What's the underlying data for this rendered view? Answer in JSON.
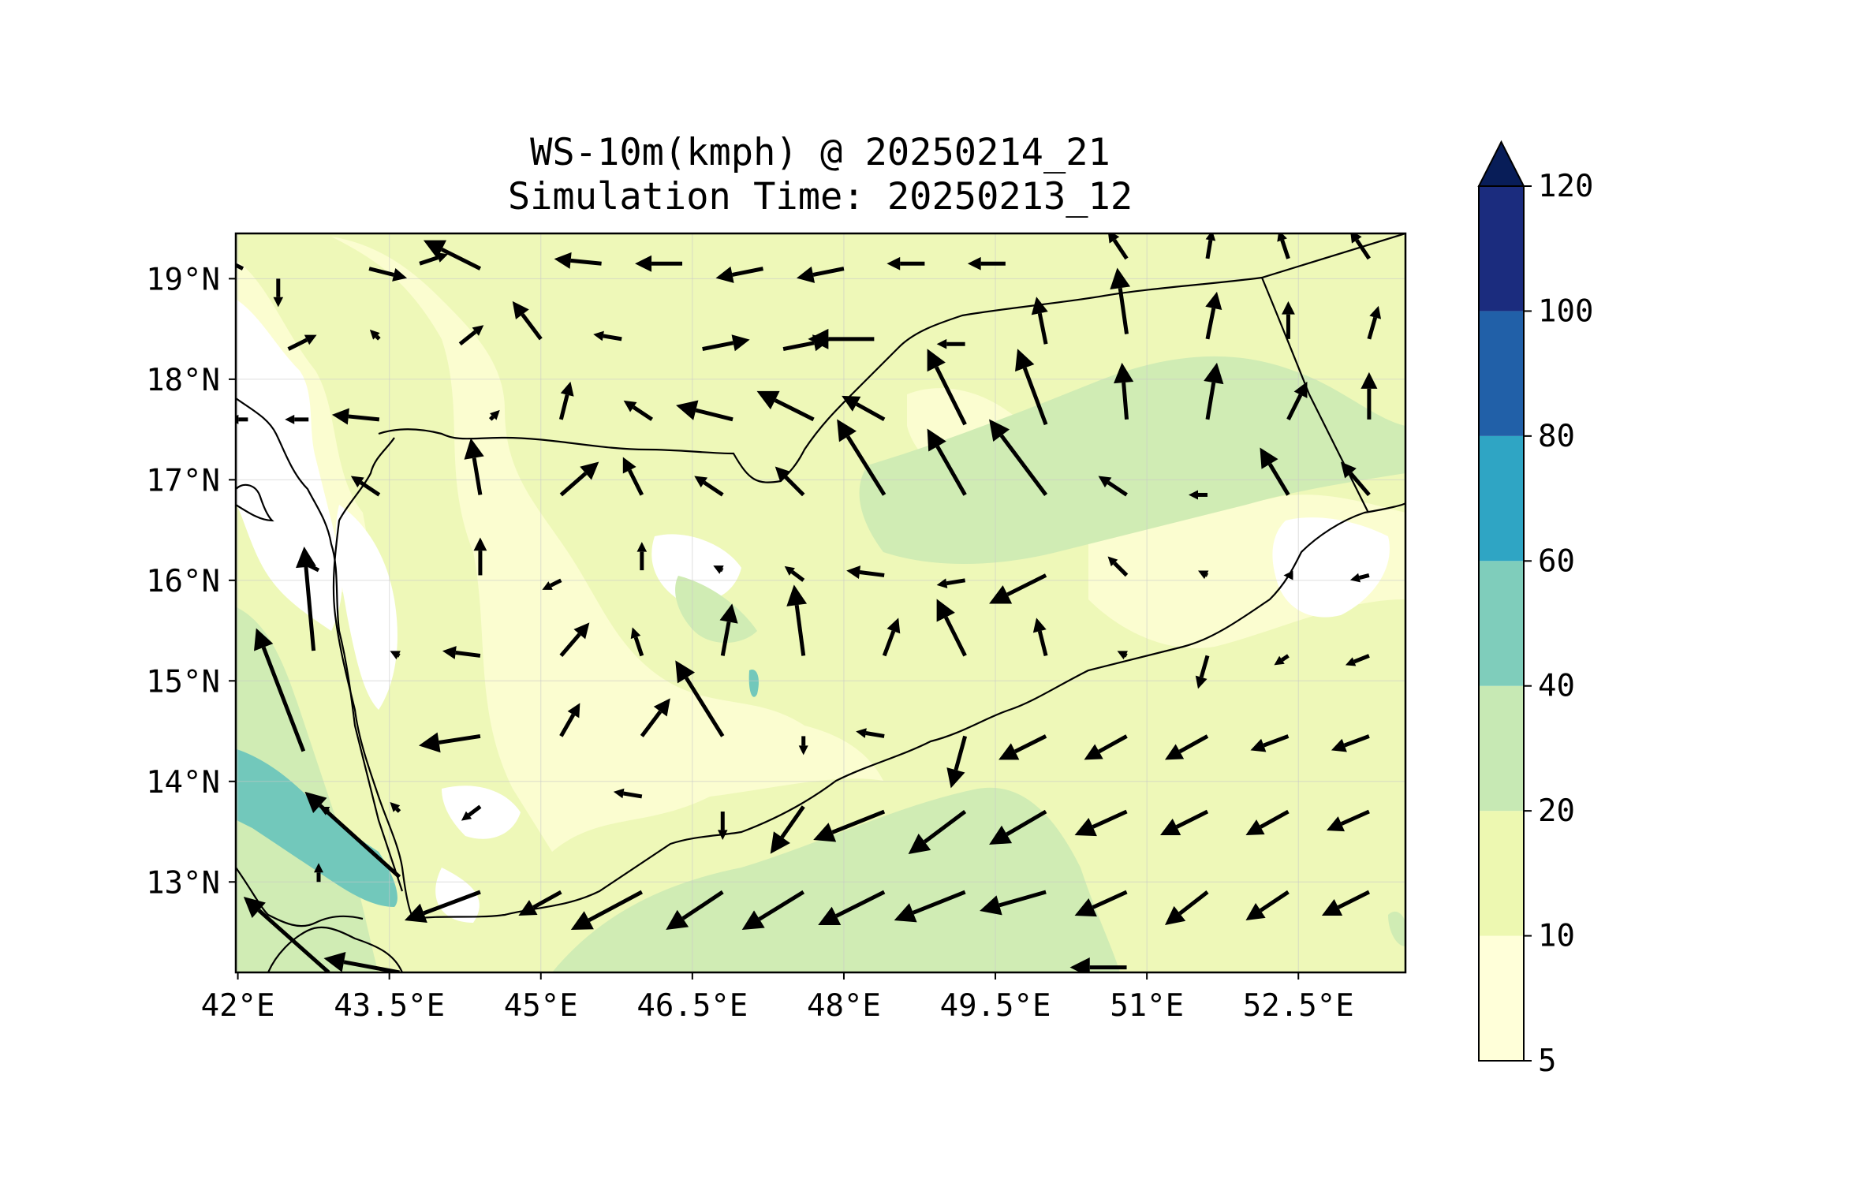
{
  "title": {
    "line1": "WS-10m(kmph) @ 20250214_21",
    "line2": "Simulation Time: 20250213_12"
  },
  "map": {
    "lon_range": [
      41.98,
      53.56
    ],
    "lat_range": [
      12.1,
      19.45
    ],
    "x_ticks": [
      {
        "value": 42,
        "label": "42°E"
      },
      {
        "value": 43.5,
        "label": "43.5°E"
      },
      {
        "value": 45,
        "label": "45°E"
      },
      {
        "value": 46.5,
        "label": "46.5°E"
      },
      {
        "value": 48,
        "label": "48°E"
      },
      {
        "value": 49.5,
        "label": "49.5°E"
      },
      {
        "value": 51,
        "label": "51°E"
      },
      {
        "value": 52.5,
        "label": "52.5°E"
      }
    ],
    "y_ticks": [
      {
        "value": 13,
        "label": "13°N"
      },
      {
        "value": 14,
        "label": "14°N"
      },
      {
        "value": 15,
        "label": "15°N"
      },
      {
        "value": 16,
        "label": "16°N"
      },
      {
        "value": 17,
        "label": "17°N"
      },
      {
        "value": 18,
        "label": "18°N"
      },
      {
        "value": 19,
        "label": "19°N"
      }
    ],
    "grid": true
  },
  "colorbar": {
    "levels": [
      {
        "value": 5,
        "label": "5",
        "color": "#ffffd9"
      },
      {
        "value": 10,
        "label": "10",
        "color": "#edf8b1"
      },
      {
        "value": 20,
        "label": "20",
        "color": "#c7e9b4"
      },
      {
        "value": 40,
        "label": "40",
        "color": "#7fcdbb"
      },
      {
        "value": 60,
        "label": "60",
        "color": "#2fa5c4"
      },
      {
        "value": 80,
        "label": "80",
        "color": "#2160a8"
      },
      {
        "value": 100,
        "label": "100",
        "color": "#1b2c7e"
      },
      {
        "value": 120,
        "label": "120",
        "color": "#081d58"
      }
    ],
    "extend": "max"
  },
  "colors": {
    "below_5": "#ffffff",
    "level_5_10": "#fbfdd0",
    "level_10_20": "#eef8b8",
    "level_20_40": "#d0ecb4",
    "level_40_60": "#72c8bb",
    "border": "#000000",
    "arrow": "#000000"
  },
  "wind_vectors": [
    {
      "lon": 42.05,
      "lat": 19.1,
      "u": -0.2,
      "v": 0.1
    },
    {
      "lon": 42.4,
      "lat": 19.0,
      "u": 0.0,
      "v": -0.3
    },
    {
      "lon": 43.3,
      "lat": 19.1,
      "u": 0.4,
      "v": -0.1
    },
    {
      "lon": 43.8,
      "lat": 19.15,
      "u": 0.3,
      "v": 0.1
    },
    {
      "lon": 44.4,
      "lat": 19.1,
      "u": -0.6,
      "v": 0.3
    },
    {
      "lon": 45.6,
      "lat": 19.15,
      "u": -0.5,
      "v": 0.05
    },
    {
      "lon": 46.4,
      "lat": 19.15,
      "u": -0.5,
      "v": 0.0
    },
    {
      "lon": 47.2,
      "lat": 19.1,
      "u": -0.5,
      "v": -0.1
    },
    {
      "lon": 48.0,
      "lat": 19.1,
      "u": -0.5,
      "v": -0.1
    },
    {
      "lon": 48.8,
      "lat": 19.15,
      "u": -0.4,
      "v": 0.0
    },
    {
      "lon": 49.6,
      "lat": 19.15,
      "u": -0.4,
      "v": 0.0
    },
    {
      "lon": 50.8,
      "lat": 19.2,
      "u": -0.2,
      "v": 0.3
    },
    {
      "lon": 51.6,
      "lat": 19.2,
      "u": 0.05,
      "v": 0.3
    },
    {
      "lon": 52.4,
      "lat": 19.2,
      "u": -0.1,
      "v": 0.3
    },
    {
      "lon": 53.2,
      "lat": 19.2,
      "u": -0.2,
      "v": 0.3
    },
    {
      "lon": 42.5,
      "lat": 18.3,
      "u": 0.3,
      "v": 0.15
    },
    {
      "lon": 43.4,
      "lat": 18.4,
      "u": -0.1,
      "v": 0.1
    },
    {
      "lon": 44.2,
      "lat": 18.35,
      "u": 0.25,
      "v": 0.2
    },
    {
      "lon": 45.0,
      "lat": 18.4,
      "u": -0.3,
      "v": 0.4
    },
    {
      "lon": 45.8,
      "lat": 18.4,
      "u": -0.3,
      "v": 0.05
    },
    {
      "lon": 46.6,
      "lat": 18.3,
      "u": 0.5,
      "v": 0.1
    },
    {
      "lon": 47.4,
      "lat": 18.3,
      "u": 0.5,
      "v": 0.1
    },
    {
      "lon": 48.3,
      "lat": 18.4,
      "u": -0.7,
      "v": 0.0
    },
    {
      "lon": 49.2,
      "lat": 18.35,
      "u": -0.3,
      "v": 0.0
    },
    {
      "lon": 50.0,
      "lat": 18.35,
      "u": -0.1,
      "v": 0.5
    },
    {
      "lon": 50.8,
      "lat": 18.45,
      "u": -0.1,
      "v": 0.7
    },
    {
      "lon": 51.6,
      "lat": 18.4,
      "u": 0.1,
      "v": 0.5
    },
    {
      "lon": 52.4,
      "lat": 18.4,
      "u": 0.0,
      "v": 0.4
    },
    {
      "lon": 53.2,
      "lat": 18.4,
      "u": 0.1,
      "v": 0.35
    },
    {
      "lon": 42.1,
      "lat": 17.6,
      "u": -0.2,
      "v": 0.0
    },
    {
      "lon": 42.7,
      "lat": 17.6,
      "u": -0.25,
      "v": 0.0
    },
    {
      "lon": 43.4,
      "lat": 17.6,
      "u": -0.5,
      "v": 0.05
    },
    {
      "lon": 44.5,
      "lat": 17.6,
      "u": 0.1,
      "v": 0.1
    },
    {
      "lon": 45.2,
      "lat": 17.6,
      "u": 0.1,
      "v": 0.4
    },
    {
      "lon": 46.1,
      "lat": 17.6,
      "u": -0.3,
      "v": 0.2
    },
    {
      "lon": 46.9,
      "lat": 17.6,
      "u": -0.6,
      "v": 0.15
    },
    {
      "lon": 47.7,
      "lat": 17.6,
      "u": -0.6,
      "v": 0.3
    },
    {
      "lon": 48.4,
      "lat": 17.6,
      "u": -0.45,
      "v": 0.25
    },
    {
      "lon": 49.2,
      "lat": 17.55,
      "u": -0.4,
      "v": 0.8
    },
    {
      "lon": 50.0,
      "lat": 17.55,
      "u": -0.3,
      "v": 0.8
    },
    {
      "lon": 50.8,
      "lat": 17.6,
      "u": -0.05,
      "v": 0.6
    },
    {
      "lon": 51.6,
      "lat": 17.6,
      "u": 0.1,
      "v": 0.6
    },
    {
      "lon": 52.4,
      "lat": 17.6,
      "u": 0.2,
      "v": 0.4
    },
    {
      "lon": 53.2,
      "lat": 17.6,
      "u": 0.0,
      "v": 0.5
    },
    {
      "lon": 43.4,
      "lat": 16.85,
      "u": -0.3,
      "v": 0.2
    },
    {
      "lon": 44.4,
      "lat": 16.85,
      "u": -0.1,
      "v": 0.6
    },
    {
      "lon": 45.2,
      "lat": 16.85,
      "u": 0.4,
      "v": 0.35
    },
    {
      "lon": 46.0,
      "lat": 16.85,
      "u": -0.2,
      "v": 0.4
    },
    {
      "lon": 46.8,
      "lat": 16.85,
      "u": -0.3,
      "v": 0.2
    },
    {
      "lon": 47.6,
      "lat": 16.85,
      "u": -0.3,
      "v": 0.3
    },
    {
      "lon": 48.4,
      "lat": 16.85,
      "u": -0.5,
      "v": 0.8
    },
    {
      "lon": 49.2,
      "lat": 16.85,
      "u": -0.4,
      "v": 0.7
    },
    {
      "lon": 50.0,
      "lat": 16.85,
      "u": -0.6,
      "v": 0.8
    },
    {
      "lon": 50.8,
      "lat": 16.85,
      "u": -0.3,
      "v": 0.2
    },
    {
      "lon": 51.6,
      "lat": 16.85,
      "u": -0.2,
      "v": 0.0
    },
    {
      "lon": 52.4,
      "lat": 16.85,
      "u": -0.3,
      "v": 0.5
    },
    {
      "lon": 53.2,
      "lat": 16.85,
      "u": -0.3,
      "v": 0.35
    },
    {
      "lon": 42.8,
      "lat": 16.1,
      "u": -0.2,
      "v": 0.1
    },
    {
      "lon": 44.4,
      "lat": 16.05,
      "u": 0.0,
      "v": 0.4
    },
    {
      "lon": 45.2,
      "lat": 16.0,
      "u": -0.2,
      "v": -0.1
    },
    {
      "lon": 46.0,
      "lat": 16.1,
      "u": 0.0,
      "v": 0.3
    },
    {
      "lon": 46.8,
      "lat": 16.1,
      "u": -0.1,
      "v": 0.05
    },
    {
      "lon": 47.6,
      "lat": 16.0,
      "u": -0.2,
      "v": 0.15
    },
    {
      "lon": 48.4,
      "lat": 16.05,
      "u": -0.4,
      "v": 0.05
    },
    {
      "lon": 49.2,
      "lat": 16.0,
      "u": -0.3,
      "v": -0.05
    },
    {
      "lon": 50.0,
      "lat": 16.05,
      "u": -0.6,
      "v": -0.3
    },
    {
      "lon": 50.8,
      "lat": 16.05,
      "u": -0.2,
      "v": 0.2
    },
    {
      "lon": 51.6,
      "lat": 16.05,
      "u": -0.1,
      "v": 0.05
    },
    {
      "lon": 52.4,
      "lat": 16.05,
      "u": -0.05,
      "v": 0.0
    },
    {
      "lon": 53.2,
      "lat": 16.05,
      "u": -0.2,
      "v": -0.05
    },
    {
      "lon": 42.75,
      "lat": 15.3,
      "u": -0.1,
      "v": 1.1
    },
    {
      "lon": 43.6,
      "lat": 15.25,
      "u": -0.1,
      "v": 0.05
    },
    {
      "lon": 44.4,
      "lat": 15.25,
      "u": -0.4,
      "v": 0.05
    },
    {
      "lon": 45.2,
      "lat": 15.25,
      "u": 0.3,
      "v": 0.35
    },
    {
      "lon": 46.0,
      "lat": 15.25,
      "u": -0.1,
      "v": 0.3
    },
    {
      "lon": 46.8,
      "lat": 15.25,
      "u": 0.1,
      "v": 0.55
    },
    {
      "lon": 47.6,
      "lat": 15.25,
      "u": -0.1,
      "v": 0.75
    },
    {
      "lon": 48.4,
      "lat": 15.25,
      "u": 0.15,
      "v": 0.4
    },
    {
      "lon": 49.2,
      "lat": 15.25,
      "u": -0.3,
      "v": 0.6
    },
    {
      "lon": 50.0,
      "lat": 15.25,
      "u": -0.1,
      "v": 0.4
    },
    {
      "lon": 50.8,
      "lat": 15.25,
      "u": -0.1,
      "v": 0.05
    },
    {
      "lon": 51.6,
      "lat": 15.25,
      "u": -0.1,
      "v": -0.35
    },
    {
      "lon": 52.4,
      "lat": 15.25,
      "u": -0.15,
      "v": -0.1
    },
    {
      "lon": 53.2,
      "lat": 15.25,
      "u": -0.25,
      "v": -0.1
    },
    {
      "lon": 42.65,
      "lat": 14.3,
      "u": -0.5,
      "v": 1.3
    },
    {
      "lon": 44.4,
      "lat": 14.45,
      "u": -0.65,
      "v": -0.1
    },
    {
      "lon": 45.2,
      "lat": 14.45,
      "u": 0.2,
      "v": 0.35
    },
    {
      "lon": 46.0,
      "lat": 14.45,
      "u": 0.3,
      "v": 0.4
    },
    {
      "lon": 46.8,
      "lat": 14.45,
      "u": -0.5,
      "v": 0.8
    },
    {
      "lon": 47.6,
      "lat": 14.45,
      "u": 0.0,
      "v": -0.2
    },
    {
      "lon": 48.4,
      "lat": 14.45,
      "u": -0.3,
      "v": 0.05
    },
    {
      "lon": 49.2,
      "lat": 14.45,
      "u": -0.15,
      "v": -0.55
    },
    {
      "lon": 50.0,
      "lat": 14.45,
      "u": -0.5,
      "v": -0.25
    },
    {
      "lon": 50.8,
      "lat": 14.45,
      "u": -0.45,
      "v": -0.25
    },
    {
      "lon": 51.6,
      "lat": 14.45,
      "u": -0.45,
      "v": -0.25
    },
    {
      "lon": 52.4,
      "lat": 14.45,
      "u": -0.4,
      "v": -0.15
    },
    {
      "lon": 53.2,
      "lat": 14.45,
      "u": -0.4,
      "v": -0.15
    },
    {
      "lon": 43.6,
      "lat": 13.05,
      "u": -1.0,
      "v": 0.9
    },
    {
      "lon": 42.9,
      "lat": 13.7,
      "u": -0.1,
      "v": 0.05
    },
    {
      "lon": 43.6,
      "lat": 13.7,
      "u": -0.1,
      "v": 0.1
    },
    {
      "lon": 44.4,
      "lat": 13.75,
      "u": -0.2,
      "v": -0.15
    },
    {
      "lon": 46.0,
      "lat": 13.85,
      "u": -0.3,
      "v": 0.05
    },
    {
      "lon": 46.8,
      "lat": 13.7,
      "u": 0.0,
      "v": -0.3
    },
    {
      "lon": 47.6,
      "lat": 13.75,
      "u": -0.35,
      "v": -0.5
    },
    {
      "lon": 48.4,
      "lat": 13.7,
      "u": -0.75,
      "v": -0.3
    },
    {
      "lon": 49.2,
      "lat": 13.7,
      "u": -0.6,
      "v": -0.45
    },
    {
      "lon": 50.0,
      "lat": 13.7,
      "u": -0.6,
      "v": -0.35
    },
    {
      "lon": 50.8,
      "lat": 13.7,
      "u": -0.55,
      "v": -0.25
    },
    {
      "lon": 51.6,
      "lat": 13.7,
      "u": -0.5,
      "v": -0.25
    },
    {
      "lon": 52.4,
      "lat": 13.7,
      "u": -0.45,
      "v": -0.25
    },
    {
      "lon": 53.2,
      "lat": 13.7,
      "u": -0.45,
      "v": -0.2
    },
    {
      "lon": 42.8,
      "lat": 13.0,
      "u": 0.0,
      "v": 0.2
    },
    {
      "lon": 44.4,
      "lat": 12.9,
      "u": -0.8,
      "v": -0.3
    },
    {
      "lon": 45.2,
      "lat": 12.9,
      "u": -0.45,
      "v": -0.25
    },
    {
      "lon": 46.0,
      "lat": 12.9,
      "u": -0.75,
      "v": -0.4
    },
    {
      "lon": 46.8,
      "lat": 12.9,
      "u": -0.6,
      "v": -0.4
    },
    {
      "lon": 47.6,
      "lat": 12.9,
      "u": -0.65,
      "v": -0.4
    },
    {
      "lon": 48.4,
      "lat": 12.9,
      "u": -0.7,
      "v": -0.35
    },
    {
      "lon": 49.2,
      "lat": 12.9,
      "u": -0.75,
      "v": -0.3
    },
    {
      "lon": 50.0,
      "lat": 12.9,
      "u": -0.7,
      "v": -0.2
    },
    {
      "lon": 50.8,
      "lat": 12.9,
      "u": -0.55,
      "v": -0.25
    },
    {
      "lon": 51.6,
      "lat": 12.9,
      "u": -0.45,
      "v": -0.35
    },
    {
      "lon": 52.4,
      "lat": 12.9,
      "u": -0.45,
      "v": -0.3
    },
    {
      "lon": 53.2,
      "lat": 12.9,
      "u": -0.5,
      "v": -0.25
    },
    {
      "lon": 42.9,
      "lat": 12.1,
      "u": -0.9,
      "v": 0.8
    },
    {
      "lon": 43.6,
      "lat": 12.1,
      "u": -0.8,
      "v": 0.15
    },
    {
      "lon": 50.8,
      "lat": 12.15,
      "u": -0.6,
      "v": 0.0
    }
  ]
}
